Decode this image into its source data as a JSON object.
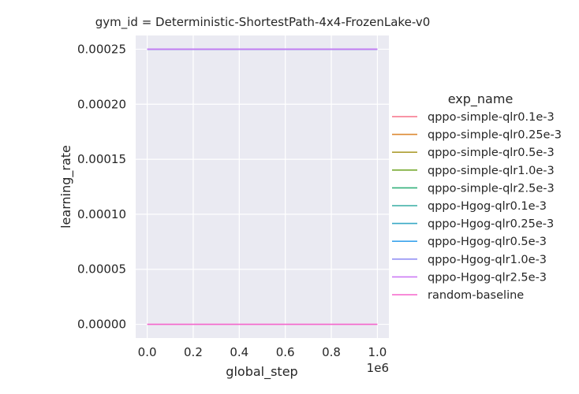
{
  "chart_data": {
    "type": "line",
    "title": "gym_id = Deterministic-ShortestPath-4x4-FrozenLake-v0",
    "xlabel": "global_step",
    "ylabel": "learning_rate",
    "x_offset_label": "1e6",
    "xlim": [
      -0.05,
      1.05
    ],
    "ylim": [
      -1.25e-05,
      0.0002625
    ],
    "x_ticks": [
      0.0,
      0.2,
      0.4,
      0.6,
      0.8,
      1.0
    ],
    "x_tick_labels": [
      "0.0",
      "0.2",
      "0.4",
      "0.6",
      "0.8",
      "1.0"
    ],
    "y_ticks": [
      0.0,
      5e-05,
      0.0001,
      0.00015,
      0.0002,
      0.00025
    ],
    "y_tick_labels": [
      "0.00000",
      "0.00005",
      "0.00010",
      "0.00015",
      "0.00020",
      "0.00025"
    ],
    "grid": true,
    "legend_title": "exp_name",
    "legend_position": "right",
    "series": [
      {
        "name": "qppo-simple-qlr0.1e-3",
        "color": "#f77189",
        "x": [
          0,
          1
        ],
        "y": [
          0.00025,
          0.00025
        ]
      },
      {
        "name": "qppo-simple-qlr0.25e-3",
        "color": "#dc8932",
        "x": [
          0,
          1
        ],
        "y": [
          0.00025,
          0.00025
        ]
      },
      {
        "name": "qppo-simple-qlr0.5e-3",
        "color": "#ae9d31",
        "x": [
          0,
          1
        ],
        "y": [
          0.00025,
          0.00025
        ]
      },
      {
        "name": "qppo-simple-qlr1.0e-3",
        "color": "#77ab31",
        "x": [
          0,
          1
        ],
        "y": [
          0.00025,
          0.00025
        ]
      },
      {
        "name": "qppo-simple-qlr2.5e-3",
        "color": "#33b07a",
        "x": [
          0,
          1
        ],
        "y": [
          0.00025,
          0.00025
        ]
      },
      {
        "name": "qppo-Hgog-qlr0.1e-3",
        "color": "#36ada4",
        "x": [
          0,
          1
        ],
        "y": [
          0.00025,
          0.00025
        ]
      },
      {
        "name": "qppo-Hgog-qlr0.25e-3",
        "color": "#38a9c5",
        "x": [
          0,
          1
        ],
        "y": [
          0.00025,
          0.00025
        ]
      },
      {
        "name": "qppo-Hgog-qlr0.5e-3",
        "color": "#3ba3ec",
        "x": [
          0,
          1
        ],
        "y": [
          0.00025,
          0.00025
        ]
      },
      {
        "name": "qppo-Hgog-qlr1.0e-3",
        "color": "#9491f4",
        "x": [
          0,
          1
        ],
        "y": [
          0.00025,
          0.00025
        ]
      },
      {
        "name": "qppo-Hgog-qlr2.5e-3",
        "color": "#cc7af4",
        "x": [
          0,
          1
        ],
        "y": [
          0.00025,
          0.00025
        ]
      },
      {
        "name": "random-baseline",
        "color": "#f565cc",
        "x": [
          0,
          1
        ],
        "y": [
          0.0,
          0.0
        ]
      }
    ]
  }
}
